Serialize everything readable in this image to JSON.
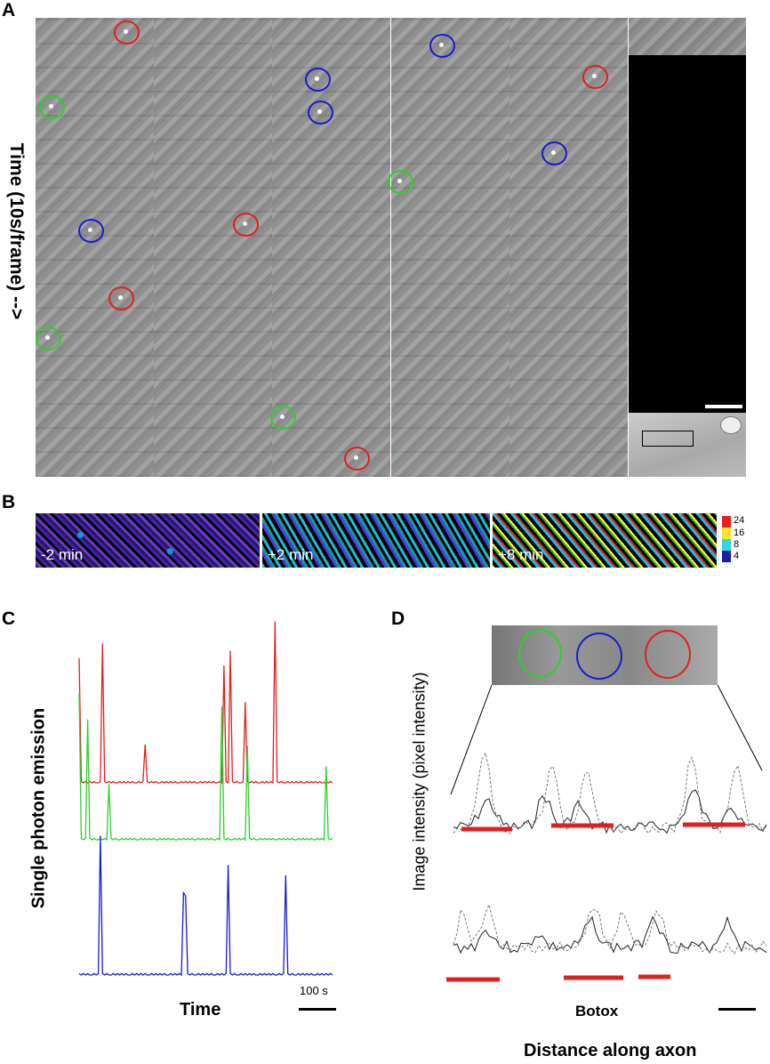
{
  "panels": {
    "a": "A",
    "b": "B",
    "c": "C",
    "d": "D"
  },
  "panel_a": {
    "ylabel": "Time (10s/frame) -->",
    "circle_colors": {
      "red": "#e02020",
      "green": "#2fcf2f",
      "blue": "#1a1ad0"
    }
  },
  "panel_b": {
    "frames": [
      "-2 min",
      "+2 min",
      "+8 min"
    ],
    "colorbar": [
      {
        "value": "24",
        "color": "#e62020"
      },
      {
        "value": "16",
        "color": "#f5e62a"
      },
      {
        "value": "8",
        "color": "#31d7e6"
      },
      {
        "value": "4",
        "color": "#1c1ca6"
      }
    ]
  },
  "chart_data": {
    "type": "line",
    "ylabel": "Single photon emission",
    "xlabel": "Time",
    "scale_label": "100 s",
    "x": [
      0,
      1,
      2,
      3,
      4,
      5,
      6,
      7,
      8,
      9,
      10,
      11,
      12,
      13,
      14,
      15,
      16,
      17,
      18,
      19,
      20,
      21,
      22,
      23,
      24,
      25,
      26,
      27,
      28,
      29,
      30,
      31,
      32,
      33,
      34,
      35,
      36,
      37,
      38,
      39,
      40,
      41,
      42,
      43,
      44,
      45,
      46,
      47,
      48,
      49,
      50,
      51,
      52,
      53,
      54,
      55,
      56,
      57,
      58,
      59,
      60,
      61,
      62,
      63,
      64,
      65,
      66,
      67,
      68,
      69,
      70,
      71,
      72,
      73,
      74,
      75,
      76,
      77,
      78,
      79,
      80,
      81,
      82,
      83,
      84,
      85,
      86,
      87,
      88,
      89,
      90,
      91,
      92,
      93,
      94,
      95,
      96,
      97,
      98,
      99,
      100,
      101,
      102,
      103,
      104,
      105,
      106,
      107,
      108,
      109,
      110,
      111,
      112,
      113,
      114,
      115,
      116,
      117,
      118,
      119
    ],
    "series": [
      {
        "color": "#e02020",
        "values": [
          8.5,
          0.1,
          0.0,
          0.1,
          0.0,
          0.1,
          0.0,
          0.1,
          0.0,
          0.0,
          0.1,
          9.5,
          0.1,
          0.0,
          0.1,
          0.0,
          0.1,
          0.0,
          0.0,
          0.1,
          0.0,
          0.1,
          0.0,
          0.1,
          0.0,
          0.1,
          0.0,
          0.0,
          0.1,
          0.0,
          0.1,
          2.6,
          0.1,
          0.0,
          0.1,
          0.0,
          0.1,
          0.0,
          0.0,
          0.1,
          0.0,
          0.1,
          0.0,
          0.1,
          0.0,
          0.1,
          0.0,
          0.0,
          0.1,
          0.0,
          0.1,
          0.0,
          0.1,
          0.0,
          0.1,
          0.0,
          0.0,
          0.1,
          0.0,
          0.1,
          0.0,
          0.1,
          0.0,
          0.1,
          0.0,
          0.0,
          0.1,
          0.0,
          8.0,
          0.1,
          0.0,
          9.0,
          0.1,
          0.0,
          0.1,
          0.0,
          0.0,
          0.1,
          5.5,
          0.1,
          0.0,
          0.1,
          0.0,
          0.1,
          0.0,
          0.0,
          0.1,
          0.0,
          0.1,
          0.0,
          0.1,
          0.0,
          11.0,
          0.1,
          0.0,
          0.1,
          0.0,
          0.0,
          0.1,
          0.0,
          0.1,
          0.0,
          0.1,
          0.0,
          0.1,
          0.0,
          0.0,
          0.1,
          0.0,
          0.1,
          0.0,
          0.1,
          0.0,
          0.1,
          0.0,
          0.0,
          0.1,
          0.0,
          0.1,
          0.0
        ]
      },
      {
        "color": "#2fcf2f",
        "values": [
          10.0,
          0.1,
          0.0,
          0.1,
          8.2,
          0.1,
          0.0,
          0.1,
          0.0,
          0.0,
          0.1,
          0.0,
          0.1,
          0.0,
          3.8,
          0.1,
          0.0,
          0.1,
          0.0,
          0.0,
          0.1,
          0.0,
          0.1,
          0.0,
          0.1,
          0.0,
          0.1,
          0.0,
          0.0,
          0.1,
          0.0,
          0.1,
          0.0,
          0.1,
          0.0,
          0.1,
          0.0,
          0.0,
          0.1,
          0.0,
          0.1,
          0.0,
          0.1,
          0.0,
          0.1,
          0.0,
          0.0,
          0.1,
          0.0,
          0.1,
          0.0,
          0.1,
          0.0,
          0.1,
          0.0,
          0.0,
          0.1,
          0.0,
          0.1,
          0.0,
          0.1,
          0.0,
          0.1,
          0.0,
          0.0,
          0.1,
          0.0,
          9.1,
          0.1,
          0.0,
          0.1,
          0.0,
          0.0,
          0.1,
          0.0,
          0.1,
          0.0,
          0.1,
          0.0,
          6.4,
          0.1,
          0.0,
          0.1,
          0.0,
          0.0,
          0.1,
          0.0,
          0.1,
          0.0,
          0.1,
          0.0,
          0.1,
          0.0,
          0.0,
          0.1,
          0.0,
          0.1,
          0.0,
          0.1,
          0.0,
          0.1,
          0.0,
          0.0,
          0.1,
          0.0,
          0.1,
          0.0,
          0.1,
          0.0,
          0.1,
          0.0,
          0.0,
          0.1,
          0.0,
          0.1,
          0.0,
          5.0,
          0.1,
          0.0,
          0.1
        ]
      },
      {
        "color": "#1a1ad0",
        "values": [
          0.1,
          0.0,
          0.1,
          0.0,
          0.1,
          0.0,
          0.0,
          0.1,
          0.0,
          0.1,
          9.5,
          0.1,
          0.0,
          0.1,
          0.0,
          0.0,
          0.1,
          0.0,
          0.1,
          0.0,
          0.1,
          0.0,
          0.1,
          0.0,
          0.0,
          0.1,
          0.0,
          0.1,
          0.0,
          0.1,
          0.0,
          0.1,
          0.0,
          0.0,
          0.1,
          0.0,
          0.1,
          0.0,
          0.1,
          0.0,
          0.1,
          0.0,
          0.0,
          0.1,
          0.0,
          0.1,
          0.0,
          0.1,
          0.0,
          5.6,
          5.4,
          0.1,
          0.0,
          0.1,
          0.0,
          0.0,
          0.1,
          0.0,
          0.1,
          0.0,
          0.1,
          0.0,
          0.1,
          0.0,
          0.0,
          0.1,
          0.0,
          0.1,
          0.0,
          0.1,
          7.5,
          0.1,
          0.0,
          0.1,
          0.0,
          0.0,
          0.1,
          0.0,
          0.1,
          0.0,
          0.1,
          0.0,
          0.1,
          0.0,
          0.0,
          0.1,
          0.0,
          0.1,
          0.0,
          0.1,
          0.0,
          0.1,
          0.0,
          0.0,
          0.1,
          0.0,
          0.1,
          6.8,
          0.1,
          0.0,
          0.1,
          0.0,
          0.0,
          0.1,
          0.0,
          0.1,
          0.0,
          0.1,
          0.0,
          0.1,
          0.0,
          0.0,
          0.1,
          0.0,
          0.1,
          0.0,
          0.1,
          0.0,
          0.1,
          0.0
        ]
      }
    ]
  },
  "panel_d": {
    "ylabel": "Image intensity (pixel intensity)",
    "xlabel": "Distance along axon",
    "center_label": "Botox",
    "circle_colors": [
      "#2fcf2f",
      "#1a1ad0",
      "#e02020"
    ]
  }
}
